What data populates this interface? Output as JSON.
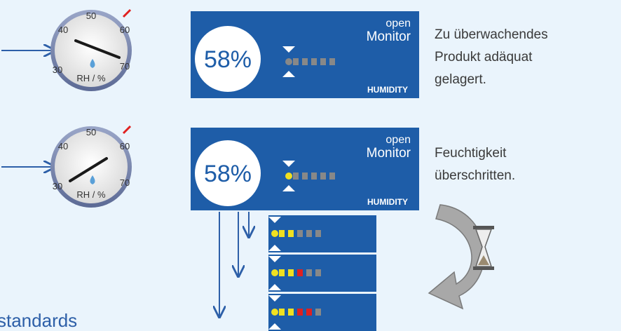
{
  "gauges": [
    {
      "labels": [
        "50",
        "40",
        "60",
        "30",
        "70"
      ],
      "unit": "RH / %"
    },
    {
      "labels": [
        "50",
        "40",
        "60",
        "30",
        "70"
      ],
      "unit": "RH / %"
    }
  ],
  "panels": [
    {
      "reading": "58%",
      "logo_top": "open",
      "logo_bottom": "Monitor",
      "label": "HUMIDITY"
    },
    {
      "reading": "58%",
      "logo_top": "open",
      "logo_bottom": "Monitor",
      "label": "HUMIDITY"
    }
  ],
  "descriptions": [
    {
      "lines": [
        "Zu überwachendes",
        "Produkt adäquat",
        "gelagert."
      ]
    },
    {
      "lines": [
        "Feuchtigkeit",
        "überschritten."
      ]
    }
  ],
  "footer": "standards"
}
